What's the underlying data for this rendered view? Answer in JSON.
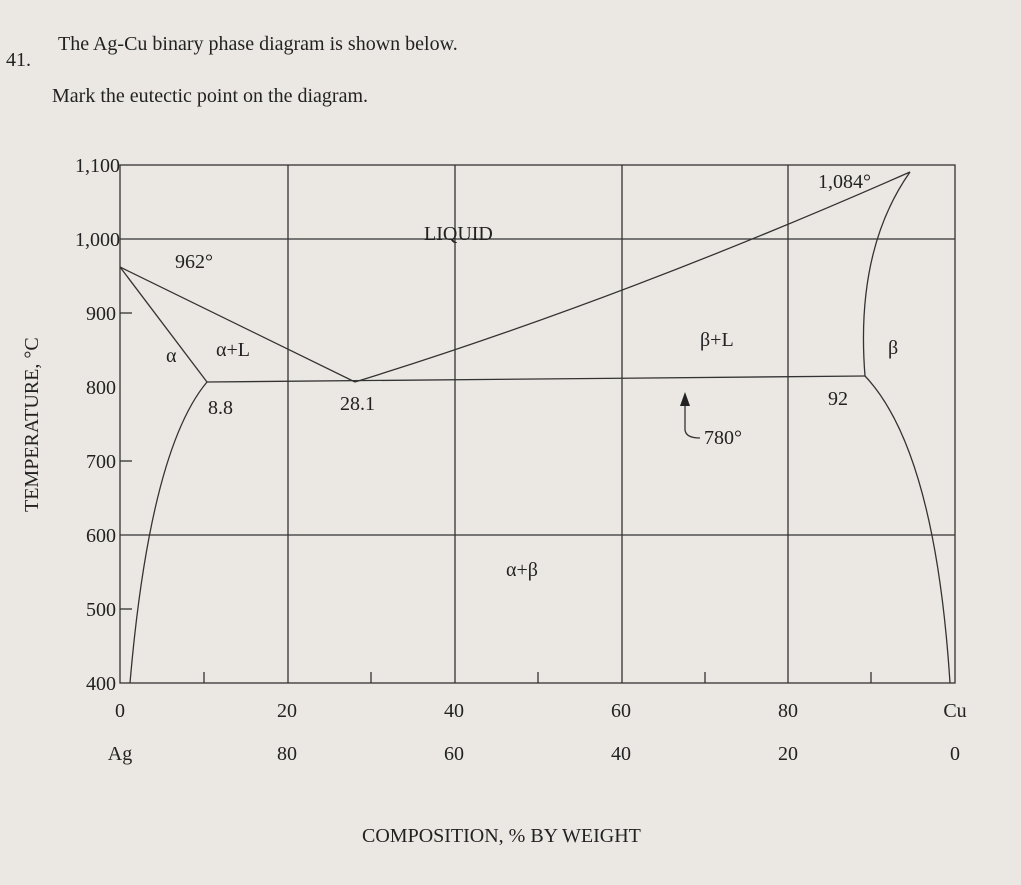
{
  "question": {
    "number": "41.",
    "line1": "The Ag-Cu binary phase diagram is shown below.",
    "line2": "Mark the eutectic point on the diagram."
  },
  "diagram": {
    "y_axis_title": "TEMPERATURE, °C",
    "y_ticks": [
      "1,100",
      "1,000",
      "900",
      "800",
      "700",
      "600",
      "500",
      "400"
    ],
    "x_ticks_top": [
      "0",
      "20",
      "40",
      "60",
      "80",
      "Cu"
    ],
    "x_ticks_bottom": [
      "Ag",
      "80",
      "60",
      "40",
      "20",
      "0"
    ],
    "x_axis_title": "COMPOSITION, % BY WEIGHT",
    "labels": {
      "ag_melting": "962°",
      "liquid": "LIQUID",
      "cu_melting": "1,084°",
      "alpha": "α",
      "alpha_liquid": "α+L",
      "beta_liquid": "β+L",
      "beta": "β",
      "alpha_limit": "8.8",
      "eutectic": "28.1",
      "beta_limit": "92",
      "eutectic_temp": "780°",
      "alpha_beta": "α+β"
    }
  }
}
